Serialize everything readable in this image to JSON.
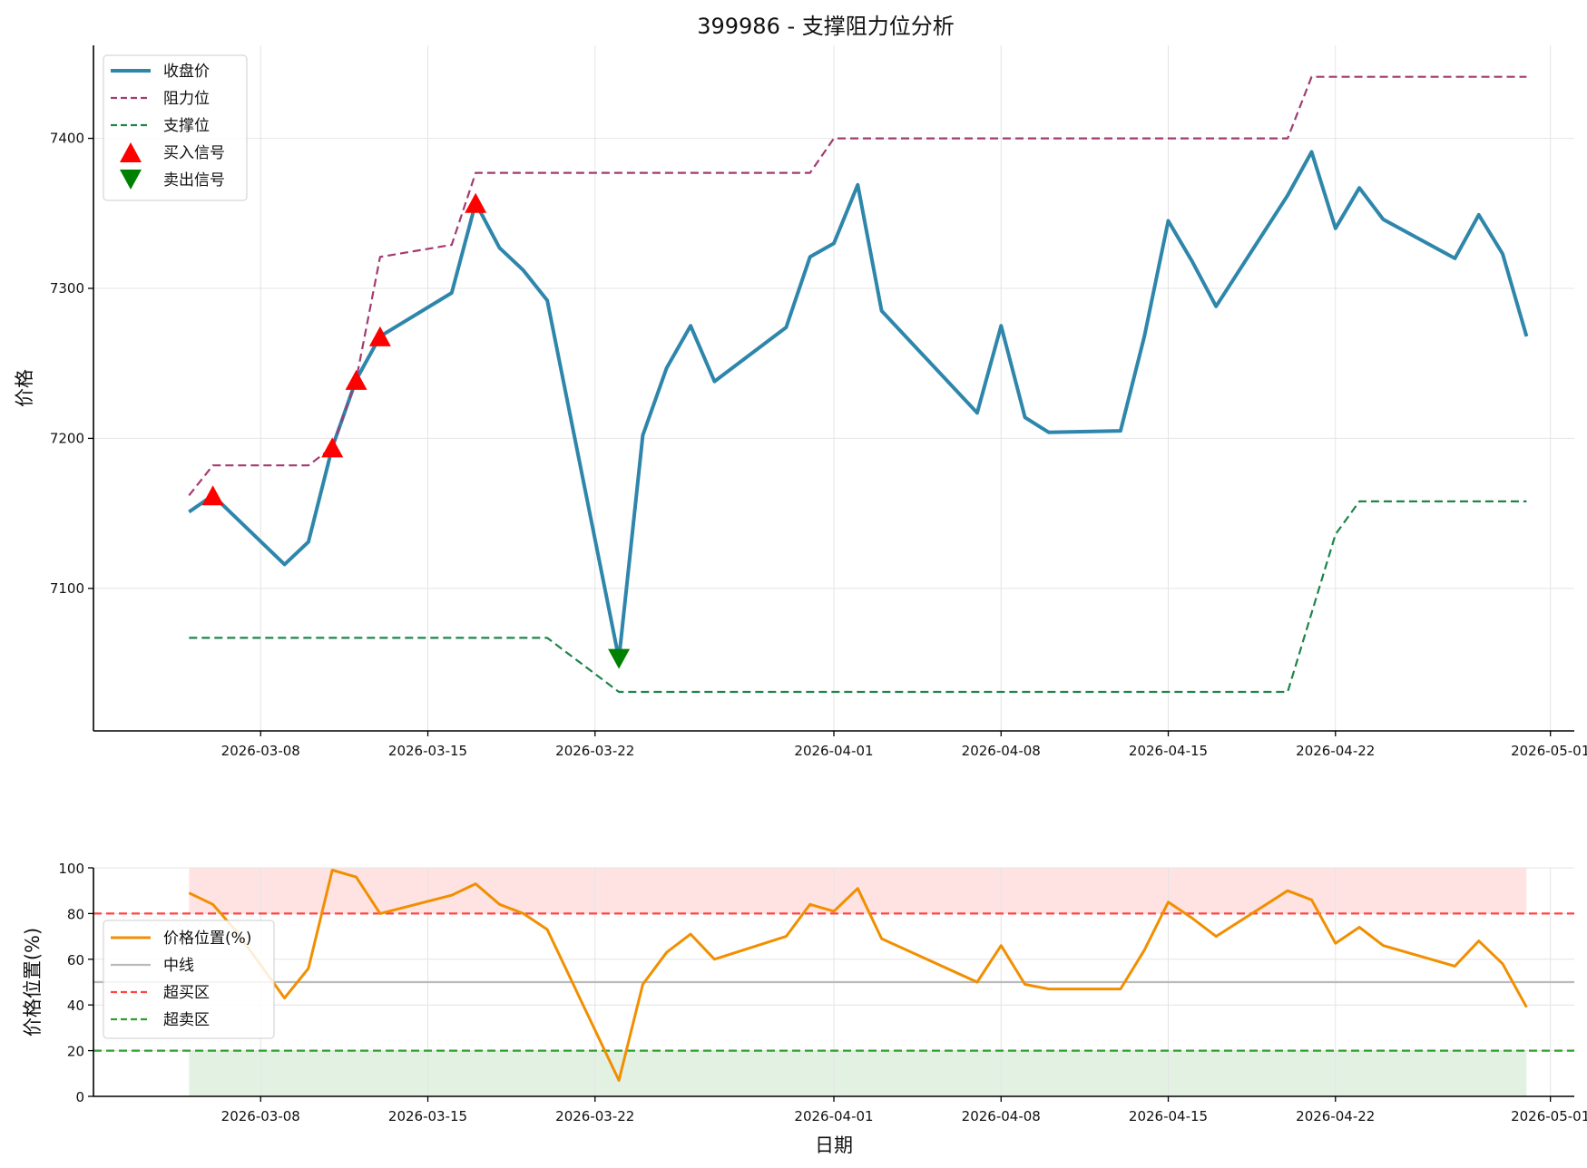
{
  "title": "399986 - 支撑阻力位分析",
  "chart_data": [
    {
      "type": "line",
      "ylabel": "价格",
      "ylim": [
        7005,
        7462
      ],
      "yticks": [
        7100,
        7200,
        7300,
        7400
      ],
      "xticks": [
        "2026-03-08",
        "2026-03-15",
        "2026-03-22",
        "2026-04-01",
        "2026-04-08",
        "2026-04-15",
        "2026-04-22",
        "2026-05-01"
      ],
      "grid": true,
      "legend_position": "upper-left",
      "series": [
        {
          "name": "收盘价",
          "color": "#2e86ab",
          "style": "solid",
          "points": [
            [
              "2026-03-05",
              7151
            ],
            [
              "2026-03-06",
              7162
            ],
            [
              "2026-03-09",
              7116
            ],
            [
              "2026-03-10",
              7131
            ],
            [
              "2026-03-11",
              7194
            ],
            [
              "2026-03-12",
              7239
            ],
            [
              "2026-03-13",
              7268
            ],
            [
              "2026-03-16",
              7297
            ],
            [
              "2026-03-17",
              7357
            ],
            [
              "2026-03-18",
              7327
            ],
            [
              "2026-03-19",
              7312
            ],
            [
              "2026-03-20",
              7292
            ],
            [
              "2026-03-23",
              7053
            ],
            [
              "2026-03-24",
              7202
            ],
            [
              "2026-03-25",
              7247
            ],
            [
              "2026-03-26",
              7275
            ],
            [
              "2026-03-27",
              7238
            ],
            [
              "2026-03-30",
              7274
            ],
            [
              "2026-03-31",
              7321
            ],
            [
              "2026-04-01",
              7330
            ],
            [
              "2026-04-02",
              7369
            ],
            [
              "2026-04-03",
              7285
            ],
            [
              "2026-04-07",
              7217
            ],
            [
              "2026-04-08",
              7275
            ],
            [
              "2026-04-09",
              7214
            ],
            [
              "2026-04-10",
              7204
            ],
            [
              "2026-04-13",
              7205
            ],
            [
              "2026-04-14",
              7268
            ],
            [
              "2026-04-15",
              7345
            ],
            [
              "2026-04-16",
              7318
            ],
            [
              "2026-04-17",
              7288
            ],
            [
              "2026-04-20",
              7362
            ],
            [
              "2026-04-21",
              7391
            ],
            [
              "2026-04-22",
              7340
            ],
            [
              "2026-04-23",
              7367
            ],
            [
              "2026-04-24",
              7346
            ],
            [
              "2026-04-27",
              7320
            ],
            [
              "2026-04-28",
              7349
            ],
            [
              "2026-04-29",
              7323
            ],
            [
              "2026-04-30",
              7268
            ]
          ]
        },
        {
          "name": "阻力位",
          "color": "#a23b72",
          "style": "dashed",
          "points": [
            [
              "2026-03-05",
              7162
            ],
            [
              "2026-03-06",
              7182
            ],
            [
              "2026-03-10",
              7182
            ],
            [
              "2026-03-11",
              7194
            ],
            [
              "2026-03-12",
              7239
            ],
            [
              "2026-03-13",
              7321
            ],
            [
              "2026-03-16",
              7329
            ],
            [
              "2026-03-17",
              7377
            ],
            [
              "2026-03-31",
              7377
            ],
            [
              "2026-04-01",
              7400
            ],
            [
              "2026-04-20",
              7400
            ],
            [
              "2026-04-21",
              7441
            ],
            [
              "2026-04-30",
              7441
            ]
          ]
        },
        {
          "name": "支撑位",
          "color": "#1e8449",
          "style": "dashed",
          "points": [
            [
              "2026-03-05",
              7067
            ],
            [
              "2026-03-20",
              7067
            ],
            [
              "2026-03-23",
              7031
            ],
            [
              "2026-04-20",
              7031
            ],
            [
              "2026-04-22",
              7136
            ],
            [
              "2026-04-23",
              7158
            ],
            [
              "2026-04-30",
              7158
            ]
          ]
        }
      ],
      "markers": [
        {
          "name": "买入信号",
          "color": "#ff0000",
          "shape": "triangle-up",
          "points": [
            [
              "2026-03-06",
              7162
            ],
            [
              "2026-03-11",
              7194
            ],
            [
              "2026-03-12",
              7239
            ],
            [
              "2026-03-13",
              7268
            ],
            [
              "2026-03-17",
              7357
            ]
          ]
        },
        {
          "name": "卖出信号",
          "color": "#008000",
          "shape": "triangle-down",
          "points": [
            [
              "2026-03-23",
              7053
            ]
          ]
        }
      ]
    },
    {
      "type": "line",
      "xlabel": "日期",
      "ylabel": "价格位置(%)",
      "ylim": [
        0,
        100
      ],
      "yticks": [
        0,
        20,
        40,
        60,
        80,
        100
      ],
      "xticks": [
        "2026-03-08",
        "2026-03-15",
        "2026-03-22",
        "2026-04-01",
        "2026-04-08",
        "2026-04-15",
        "2026-04-22",
        "2026-05-01"
      ],
      "grid": true,
      "legend_position": "center-left",
      "bands": [
        {
          "from": 80,
          "to": 100,
          "color": "#ff0000",
          "x_start": "2026-03-05",
          "x_end": "2026-04-30"
        },
        {
          "from": 0,
          "to": 20,
          "color": "#008000",
          "x_start": "2026-03-05",
          "x_end": "2026-04-30"
        }
      ],
      "series": [
        {
          "name": "价格位置(%)",
          "color": "#f18f01",
          "style": "solid",
          "points": [
            [
              "2026-03-05",
              89
            ],
            [
              "2026-03-06",
              84
            ],
            [
              "2026-03-07",
              72
            ],
            [
              "2026-03-09",
              43
            ],
            [
              "2026-03-10",
              56
            ],
            [
              "2026-03-11",
              99
            ],
            [
              "2026-03-12",
              96
            ],
            [
              "2026-03-13",
              80
            ],
            [
              "2026-03-16",
              88
            ],
            [
              "2026-03-17",
              93
            ],
            [
              "2026-03-18",
              84
            ],
            [
              "2026-03-19",
              80
            ],
            [
              "2026-03-20",
              73
            ],
            [
              "2026-03-23",
              7
            ],
            [
              "2026-03-24",
              49
            ],
            [
              "2026-03-25",
              63
            ],
            [
              "2026-03-26",
              71
            ],
            [
              "2026-03-27",
              60
            ],
            [
              "2026-03-30",
              70
            ],
            [
              "2026-03-31",
              84
            ],
            [
              "2026-04-01",
              81
            ],
            [
              "2026-04-02",
              91
            ],
            [
              "2026-04-03",
              69
            ],
            [
              "2026-04-07",
              50
            ],
            [
              "2026-04-08",
              66
            ],
            [
              "2026-04-09",
              49
            ],
            [
              "2026-04-10",
              47
            ],
            [
              "2026-04-13",
              47
            ],
            [
              "2026-04-14",
              64
            ],
            [
              "2026-04-15",
              85
            ],
            [
              "2026-04-16",
              78
            ],
            [
              "2026-04-17",
              70
            ],
            [
              "2026-04-20",
              90
            ],
            [
              "2026-04-21",
              86
            ],
            [
              "2026-04-22",
              67
            ],
            [
              "2026-04-23",
              74
            ],
            [
              "2026-04-24",
              66
            ],
            [
              "2026-04-27",
              57
            ],
            [
              "2026-04-28",
              68
            ],
            [
              "2026-04-29",
              58
            ],
            [
              "2026-04-30",
              39
            ]
          ]
        },
        {
          "name": "中线",
          "color": "#bbbbbb",
          "style": "solid",
          "hline": 50
        },
        {
          "name": "超买区",
          "color": "#ff4444",
          "style": "dashed",
          "hline": 80
        },
        {
          "name": "超卖区",
          "color": "#2ca02c",
          "style": "dashed",
          "hline": 20
        }
      ]
    }
  ]
}
